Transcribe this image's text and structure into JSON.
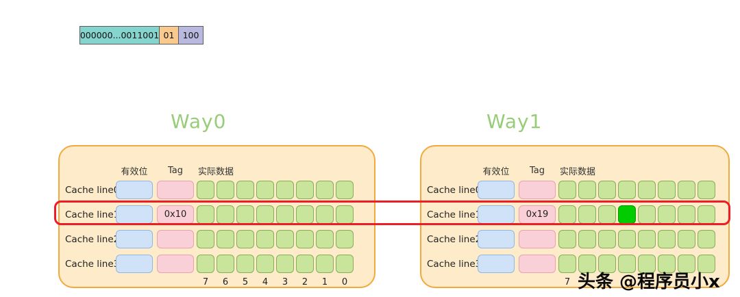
{
  "address": {
    "tag_bits": "000000...0011001",
    "index_bits": "01",
    "offset_bits": "100"
  },
  "cells_per_line": 8,
  "ways": [
    {
      "title": "Way0",
      "headers": {
        "valid": "有效位",
        "tag": "Tag",
        "data": "实际数据"
      },
      "rows": [
        {
          "label": "Cache line0",
          "tag": ""
        },
        {
          "label": "Cache line1",
          "tag": "0x10"
        },
        {
          "label": "Cache line2",
          "tag": ""
        },
        {
          "label": "Cache line3",
          "tag": ""
        }
      ],
      "byte_indices": [
        "7",
        "6",
        "5",
        "4",
        "3",
        "2",
        "1",
        "0"
      ]
    },
    {
      "title": "Way1",
      "headers": {
        "valid": "有效位",
        "tag": "Tag",
        "data": "实际数据"
      },
      "rows": [
        {
          "label": "Cache line0",
          "tag": ""
        },
        {
          "label": "Cache line1",
          "tag": "0x19"
        },
        {
          "label": "Cache line2",
          "tag": ""
        },
        {
          "label": "Cache line3",
          "tag": ""
        }
      ],
      "byte_indices": [
        "7"
      ]
    }
  ],
  "highlight": {
    "way": 1,
    "row": 1,
    "cell": 3
  },
  "watermark": "头条 @程序员小x",
  "colors": {
    "address_tag_bg": "#85d4ce",
    "address_index_bg": "#f9c98e",
    "address_offset_bg": "#b9b9e0",
    "way_title": "#97cc78",
    "container_bg": "#fdebc9",
    "container_border": "#f2a93b",
    "valid_cell_bg": "#cfe2f8",
    "tag_cell_bg": "#f9d0d8",
    "data_cell_bg": "#c9e49b",
    "highlight_cell_bg": "#00cc00",
    "highlight_outline": "#ee1c25"
  }
}
